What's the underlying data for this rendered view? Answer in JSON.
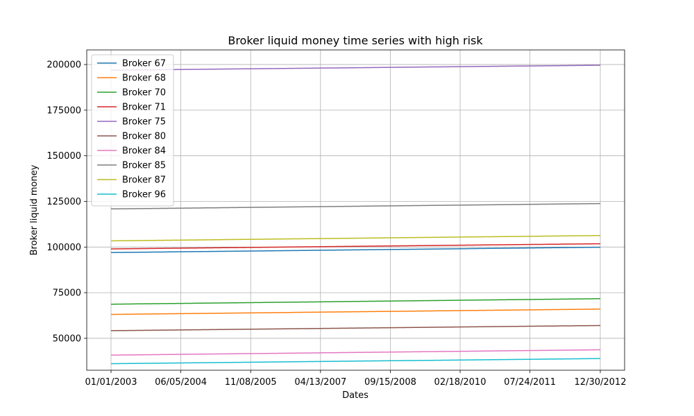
{
  "chart_data": {
    "type": "line",
    "title": "Broker liquid money time series with high risk",
    "xlabel": "Dates",
    "ylabel": "Broker liquid money",
    "x_start": "2003-01-01",
    "x_end": "2012-12-30",
    "x_tick_dates": [
      "2003-01-01",
      "2004-06-05",
      "2005-11-08",
      "2007-04-13",
      "2008-09-15",
      "2010-02-18",
      "2011-07-24",
      "2012-12-30"
    ],
    "x_tick_labels": [
      "01/01/2003",
      "06/05/2004",
      "11/08/2005",
      "04/13/2007",
      "09/15/2008",
      "02/18/2010",
      "07/24/2011",
      "12/30/2012"
    ],
    "ylim": [
      32500,
      208000
    ],
    "y_ticks": [
      50000,
      75000,
      100000,
      125000,
      150000,
      175000,
      200000
    ],
    "y_tick_labels": [
      "50000",
      "75000",
      "100000",
      "125000",
      "150000",
      "175000",
      "200000"
    ],
    "grid": true,
    "legend_position": "top-left",
    "series": [
      {
        "name": "Broker 67",
        "color": "#1f77b4",
        "start": 97000,
        "end": 99900
      },
      {
        "name": "Broker 68",
        "color": "#ff7f0e",
        "start": 63100,
        "end": 66000
      },
      {
        "name": "Broker 70",
        "color": "#2ca02c",
        "start": 68700,
        "end": 71700
      },
      {
        "name": "Broker 71",
        "color": "#d62728",
        "start": 99000,
        "end": 101800
      },
      {
        "name": "Broker 75",
        "color": "#9467bd",
        "start": 196900,
        "end": 199600
      },
      {
        "name": "Broker 80",
        "color": "#8c564b",
        "start": 54200,
        "end": 57000
      },
      {
        "name": "Broker 84",
        "color": "#e377c2",
        "start": 40800,
        "end": 43700
      },
      {
        "name": "Broker 85",
        "color": "#7f7f7f",
        "start": 120900,
        "end": 123800
      },
      {
        "name": "Broker 87",
        "color": "#bcbd22",
        "start": 103400,
        "end": 106300
      },
      {
        "name": "Broker 96",
        "color": "#17becf",
        "start": 36100,
        "end": 38900
      }
    ]
  }
}
